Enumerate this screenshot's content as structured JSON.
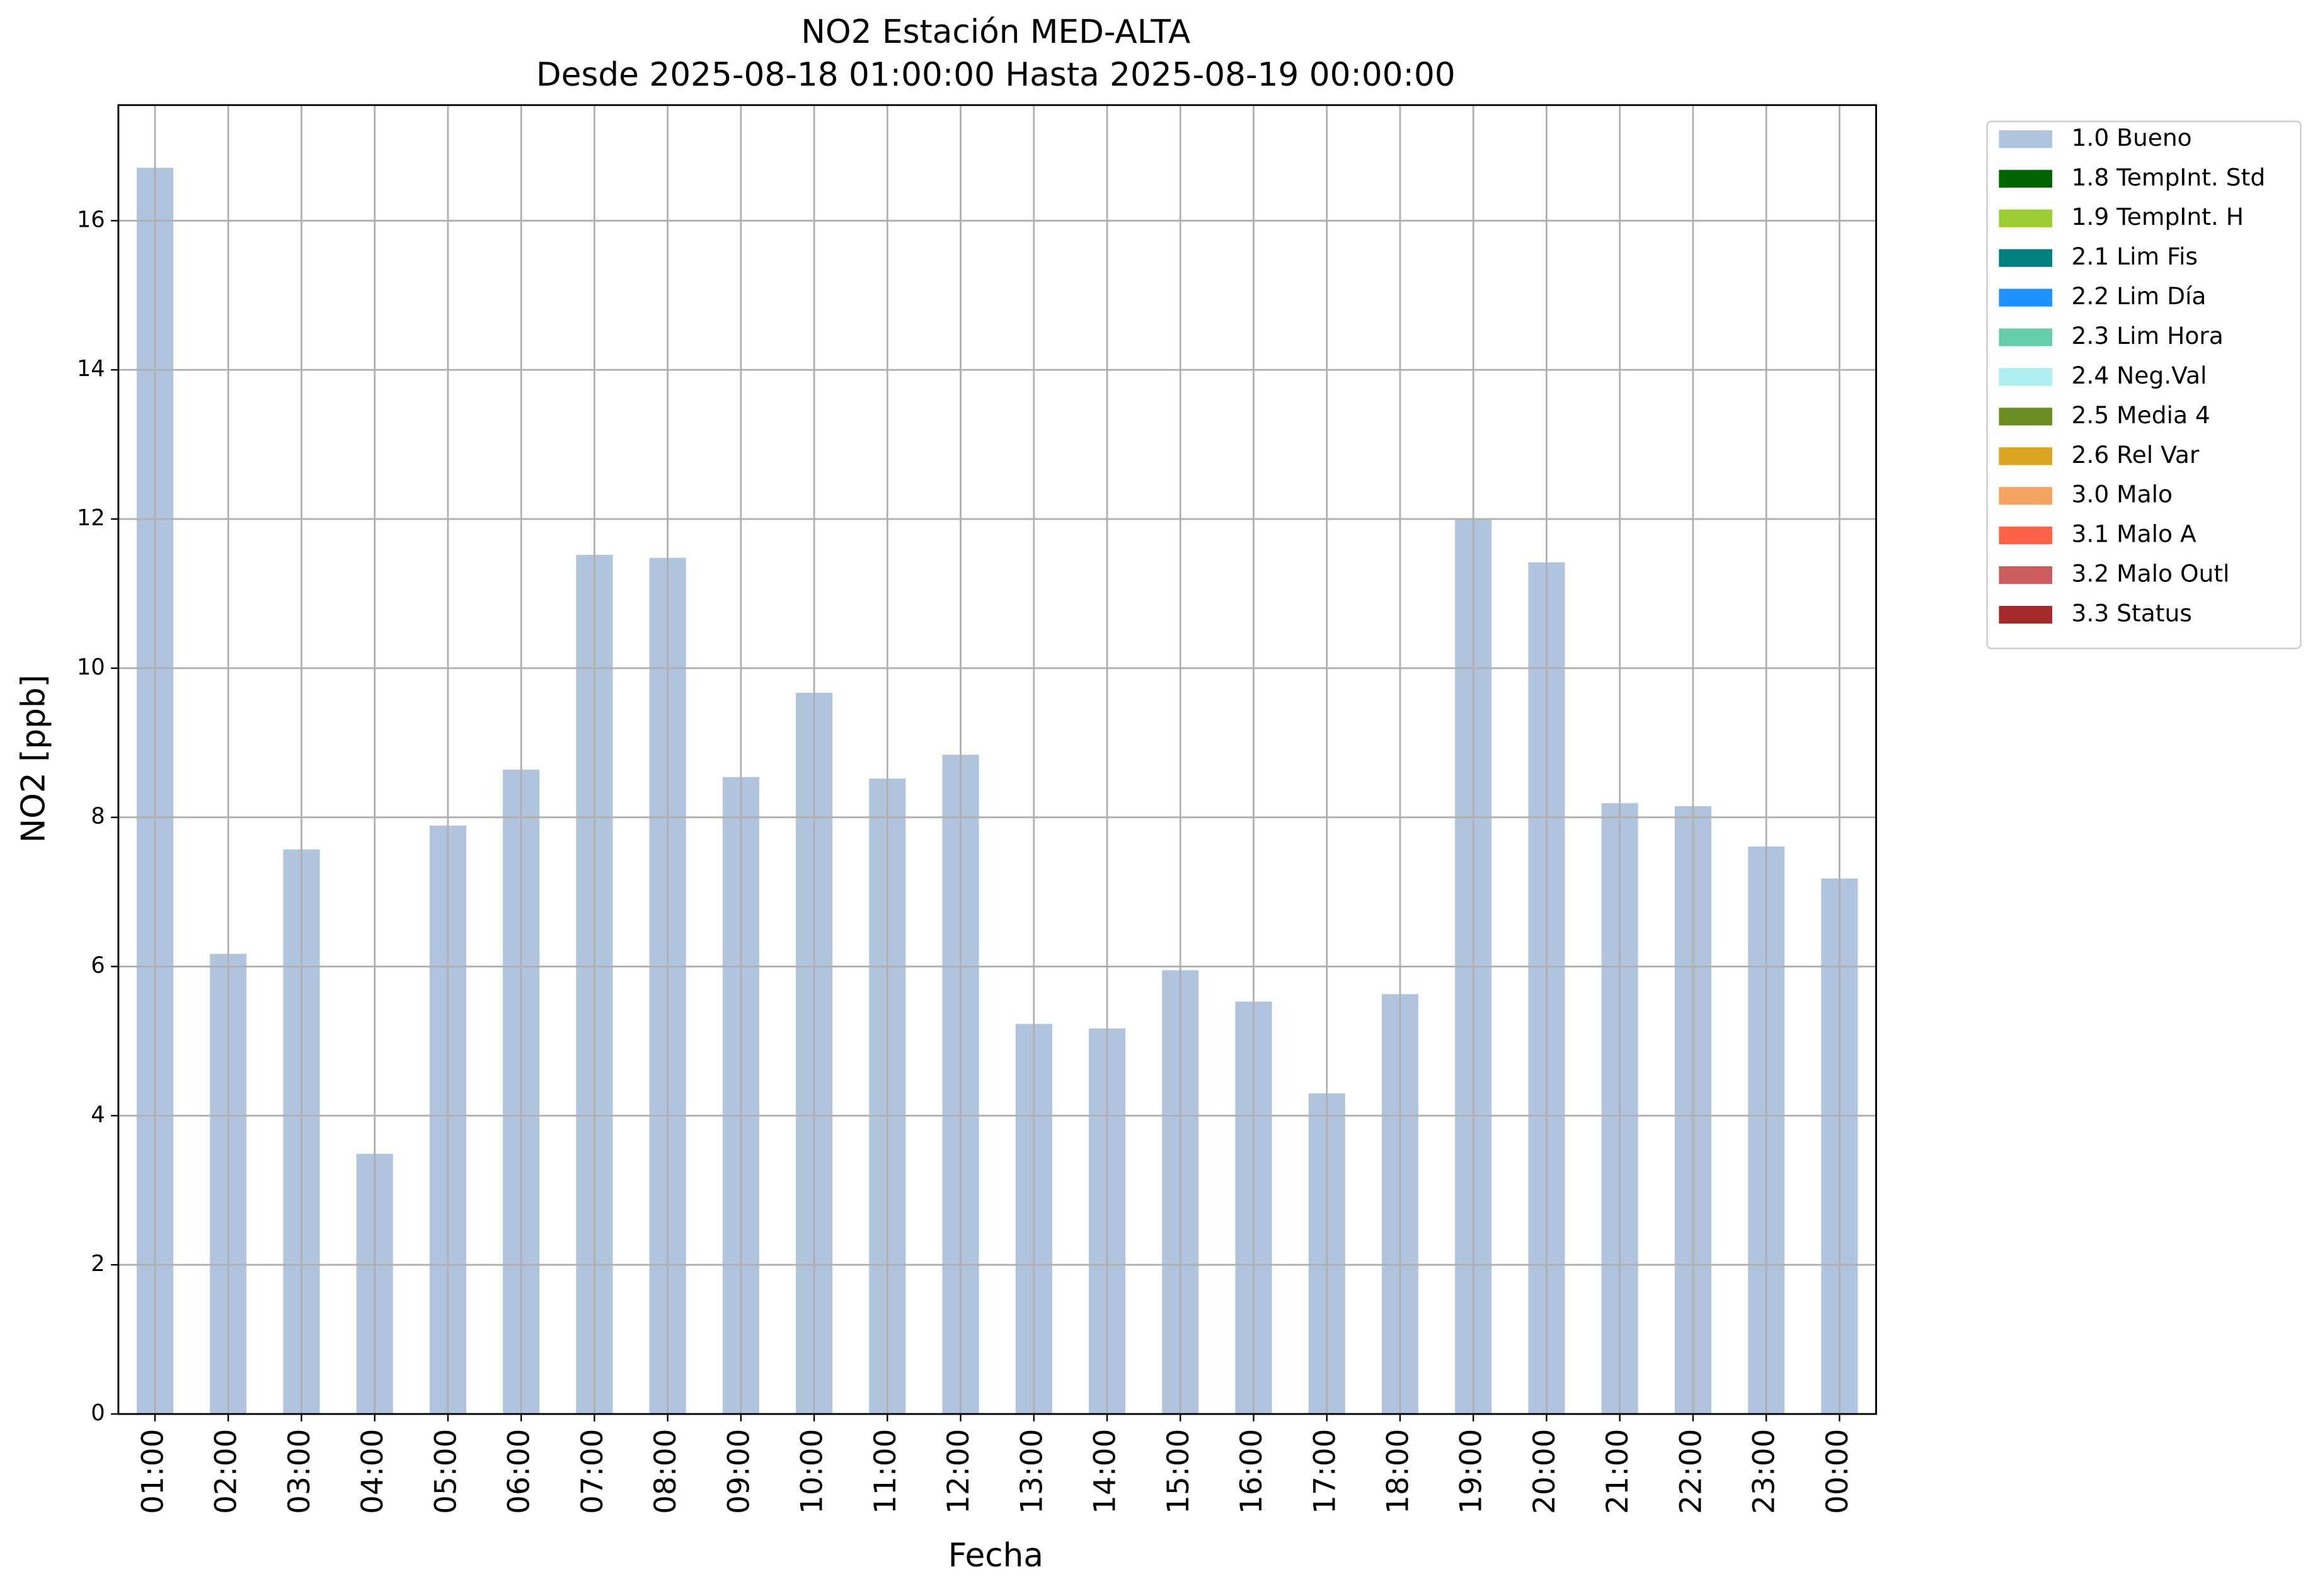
{
  "chart_data": {
    "type": "bar",
    "stacked": true,
    "title": [
      "NO2 Estación MED-ALTA",
      "Desde 2025-08-18 01:00:00 Hasta 2025-08-19 00:00:00"
    ],
    "x_label": "Fecha",
    "y_label": "NO2 [ppb]",
    "categories": [
      "01:00",
      "02:00",
      "03:00",
      "04:00",
      "05:00",
      "06:00",
      "07:00",
      "08:00",
      "09:00",
      "10:00",
      "11:00",
      "12:00",
      "13:00",
      "14:00",
      "15:00",
      "16:00",
      "17:00",
      "18:00",
      "19:00",
      "20:00",
      "21:00",
      "22:00",
      "23:00",
      "00:00"
    ],
    "series": [
      {
        "name": "1.0 Bueno",
        "color": "#b0c4de",
        "values": [
          16.71,
          6.17,
          7.57,
          3.49,
          7.89,
          8.64,
          11.52,
          11.48,
          8.54,
          9.67,
          8.52,
          8.84,
          5.23,
          5.17,
          5.95,
          5.53,
          4.3,
          5.63,
          11.99,
          11.42,
          8.19,
          8.15,
          7.61,
          7.18
        ]
      },
      {
        "name": "1.8 TempInt. Std",
        "color": "#006400",
        "values": [
          0,
          0,
          0,
          0,
          0,
          0,
          0,
          0,
          0,
          0,
          0,
          0,
          0,
          0,
          0,
          0,
          0,
          0,
          0,
          0,
          0,
          0,
          0,
          0
        ]
      },
      {
        "name": "1.9 TempInt. H",
        "color": "#9acd32",
        "values": [
          0,
          0,
          0,
          0,
          0,
          0,
          0,
          0,
          0,
          0,
          0,
          0,
          0,
          0,
          0,
          0,
          0,
          0,
          0,
          0,
          0,
          0,
          0,
          0
        ]
      },
      {
        "name": "2.1 Lim Fis",
        "color": "#008080",
        "values": [
          0,
          0,
          0,
          0,
          0,
          0,
          0,
          0,
          0,
          0,
          0,
          0,
          0,
          0,
          0,
          0,
          0,
          0,
          0,
          0,
          0,
          0,
          0,
          0
        ]
      },
      {
        "name": "2.2 Lim Día",
        "color": "#1e90ff",
        "values": [
          0,
          0,
          0,
          0,
          0,
          0,
          0,
          0,
          0,
          0,
          0,
          0,
          0,
          0,
          0,
          0,
          0,
          0,
          0,
          0,
          0,
          0,
          0,
          0
        ]
      },
      {
        "name": "2.3 Lim Hora",
        "color": "#66cdaa",
        "values": [
          0,
          0,
          0,
          0,
          0,
          0,
          0,
          0,
          0,
          0,
          0,
          0,
          0,
          0,
          0,
          0,
          0,
          0,
          0,
          0,
          0,
          0,
          0,
          0
        ]
      },
      {
        "name": "2.4 Neg.Val",
        "color": "#afeeee",
        "values": [
          0,
          0,
          0,
          0,
          0,
          0,
          0,
          0,
          0,
          0,
          0,
          0,
          0,
          0,
          0,
          0,
          0,
          0,
          0,
          0,
          0,
          0,
          0,
          0
        ]
      },
      {
        "name": "2.5 Media 4",
        "color": "#6b8e23",
        "values": [
          0,
          0,
          0,
          0,
          0,
          0,
          0,
          0,
          0,
          0,
          0,
          0,
          0,
          0,
          0,
          0,
          0,
          0,
          0,
          0,
          0,
          0,
          0,
          0
        ]
      },
      {
        "name": "2.6 Rel Var",
        "color": "#daa520",
        "values": [
          0,
          0,
          0,
          0,
          0,
          0,
          0,
          0,
          0,
          0,
          0,
          0,
          0,
          0,
          0,
          0,
          0,
          0,
          0,
          0,
          0,
          0,
          0,
          0
        ]
      },
      {
        "name": "3.0 Malo",
        "color": "#f4a460",
        "values": [
          0,
          0,
          0,
          0,
          0,
          0,
          0,
          0,
          0,
          0,
          0,
          0,
          0,
          0,
          0,
          0,
          0,
          0,
          0,
          0,
          0,
          0,
          0,
          0
        ]
      },
      {
        "name": "3.1 Malo A",
        "color": "#ff6347",
        "values": [
          0,
          0,
          0,
          0,
          0,
          0,
          0,
          0,
          0,
          0,
          0,
          0,
          0,
          0,
          0,
          0,
          0,
          0,
          0,
          0,
          0,
          0,
          0,
          0
        ]
      },
      {
        "name": "3.2 Malo Outl",
        "color": "#cd5c5c",
        "values": [
          0,
          0,
          0,
          0,
          0,
          0,
          0,
          0,
          0,
          0,
          0,
          0,
          0,
          0,
          0,
          0,
          0,
          0,
          0,
          0,
          0,
          0,
          0,
          0
        ]
      },
      {
        "name": "3.3 Status",
        "color": "#a52a2a",
        "values": [
          0,
          0,
          0,
          0,
          0,
          0,
          0,
          0,
          0,
          0,
          0,
          0,
          0,
          0,
          0,
          0,
          0,
          0,
          0,
          0,
          0,
          0,
          0,
          0
        ]
      }
    ],
    "ylim": [
      0,
      17.55
    ],
    "yticks": [
      0,
      2,
      4,
      6,
      8,
      10,
      12,
      14,
      16
    ],
    "grid": true,
    "legend": "outside-right"
  }
}
